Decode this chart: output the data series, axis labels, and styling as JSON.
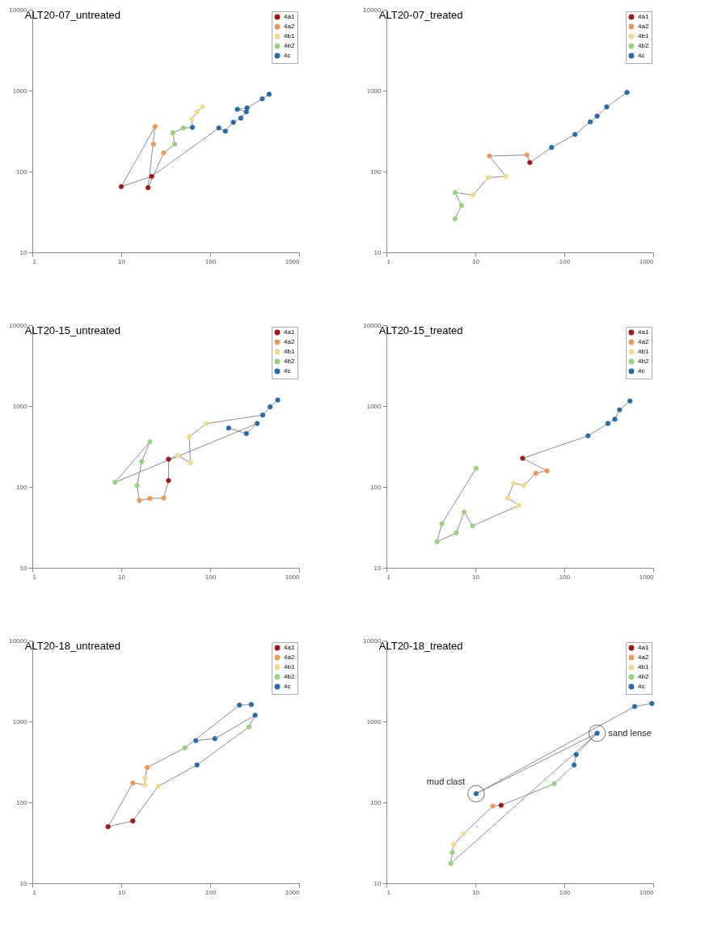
{
  "chart_data": [
    {
      "type": "scatter",
      "title": "ALT20-07_untreated",
      "log": "xy",
      "xlim": [
        1,
        1000
      ],
      "ylim": [
        10,
        10000
      ],
      "xticks": [
        1,
        10,
        100,
        1000
      ],
      "yticks": [
        10,
        100,
        1000,
        10000
      ],
      "grid": false,
      "legend": "top right",
      "marker": "circle",
      "series": [
        {
          "type": "line",
          "marker": "none",
          "color": "#8c8c8c",
          "x": [
            460,
            385,
            260,
            202,
            255,
            221,
            182,
            148,
            125,
            22,
            10,
            24,
            20,
            30,
            40,
            38,
            50,
            63,
            62,
            71,
            82
          ],
          "values": [
            900,
            790,
            610,
            587,
            547,
            458,
            406,
            315,
            345,
            87,
            65,
            358,
            63,
            170,
            218,
            300,
            345,
            351,
            443,
            547,
            630
          ]
        },
        {
          "name": "4a1",
          "color": "#9e1b1b",
          "x": [
            22,
            20,
            10
          ],
          "values": [
            87,
            63,
            65
          ]
        },
        {
          "name": "4a2",
          "color": "#e89a5a",
          "x": [
            30,
            24,
            23
          ],
          "values": [
            170,
            358,
            218
          ]
        },
        {
          "name": "4b1",
          "color": "#f0dc8c",
          "x": [
            82,
            71,
            62
          ],
          "values": [
            630,
            547,
            443
          ]
        },
        {
          "name": "4b2",
          "color": "#9ad17f",
          "x": [
            50,
            38,
            40
          ],
          "values": [
            345,
            300,
            218
          ]
        },
        {
          "name": "4c",
          "color": "#2a6aa5",
          "x": [
            460,
            385,
            260,
            255,
            202,
            221,
            182,
            148,
            125,
            63
          ],
          "values": [
            900,
            790,
            610,
            547,
            587,
            458,
            406,
            315,
            345,
            351
          ]
        }
      ]
    },
    {
      "type": "scatter",
      "title": "ALT20-07_treated",
      "log": "xy",
      "xlim": [
        1,
        1000
      ],
      "ylim": [
        10,
        10000
      ],
      "xticks": [
        1,
        10,
        100,
        1000
      ],
      "yticks": [
        10,
        100,
        1000,
        10000
      ],
      "grid": false,
      "legend": "top right",
      "marker": "circle",
      "series": [
        {
          "type": "line",
          "marker": "none",
          "color": "#8c8c8c",
          "x": [
            507,
            300,
            234,
            196,
            132,
            72,
            41,
            38,
            14.4,
            22,
            14,
            9.4,
            5.9,
            7,
            5.9
          ],
          "values": [
            950,
            628,
            483,
            410,
            287,
            198,
            129,
            160,
            155,
            87,
            84,
            51,
            55,
            38,
            26
          ]
        },
        {
          "name": "4a1",
          "color": "#9e1b1b",
          "x": [
            41
          ],
          "values": [
            129
          ]
        },
        {
          "name": "4a2",
          "color": "#e89a5a",
          "x": [
            38,
            14.4
          ],
          "values": [
            160,
            155
          ]
        },
        {
          "name": "4b1",
          "color": "#f0dc8c",
          "x": [
            22,
            14,
            9.4
          ],
          "values": [
            87,
            84,
            51
          ]
        },
        {
          "name": "4b2",
          "color": "#9ad17f",
          "x": [
            5.9,
            7,
            5.9
          ],
          "values": [
            55,
            38,
            26
          ]
        },
        {
          "name": "4c",
          "color": "#2a6aa5",
          "x": [
            507,
            300,
            234,
            196,
            132,
            72
          ],
          "values": [
            950,
            628,
            483,
            410,
            287,
            198
          ]
        }
      ]
    },
    {
      "type": "scatter",
      "title": "ALT20-15_untreated",
      "log": "xy",
      "xlim": [
        1,
        1000
      ],
      "ylim": [
        10,
        10000
      ],
      "xticks": [
        1,
        10,
        100,
        1000
      ],
      "yticks": [
        10,
        100,
        1000,
        10000
      ],
      "grid": false,
      "legend": "top right",
      "marker": "circle",
      "series": [
        {
          "type": "line",
          "marker": "none",
          "color": "#8c8c8c",
          "x": [
            575,
            472,
            390,
            91,
            58,
            60,
            43,
            34,
            34,
            30,
            21,
            16,
            15,
            17,
            21,
            8.5,
            338,
            255,
            161
          ],
          "values": [
            1186,
            977,
            774,
            608,
            417,
            198,
            245,
            220,
            120,
            73,
            72,
            68,
            104,
            205,
            362,
            114,
            608,
            457,
            535
          ]
        },
        {
          "name": "4a1",
          "color": "#9e1b1b",
          "x": [
            34,
            34
          ],
          "values": [
            220,
            120
          ]
        },
        {
          "name": "4a2",
          "color": "#e89a5a",
          "x": [
            30,
            21,
            16
          ],
          "values": [
            73,
            72,
            68
          ]
        },
        {
          "name": "4b1",
          "color": "#f0dc8c",
          "x": [
            91,
            58,
            60,
            43
          ],
          "values": [
            608,
            417,
            198,
            245
          ]
        },
        {
          "name": "4b2",
          "color": "#9ad17f",
          "x": [
            15,
            17,
            21,
            8.5
          ],
          "values": [
            104,
            205,
            362,
            114
          ]
        },
        {
          "name": "4c",
          "color": "#2a6aa5",
          "x": [
            575,
            472,
            390,
            338,
            255,
            161
          ],
          "values": [
            1186,
            977,
            774,
            608,
            457,
            535
          ]
        }
      ]
    },
    {
      "type": "scatter",
      "title": "ALT20-15_treated",
      "log": "xy",
      "xlim": [
        1,
        1000
      ],
      "ylim": [
        10,
        10000
      ],
      "xticks": [
        1,
        10,
        100,
        1000
      ],
      "yticks": [
        10,
        100,
        1000,
        10000
      ],
      "grid": false,
      "legend": "top right",
      "marker": "circle",
      "series": [
        {
          "type": "line",
          "marker": "none",
          "color": "#8c8c8c",
          "x": [
            548,
            418,
            370,
            310,
            185,
            34,
            64,
            48,
            35,
            27,
            23,
            31,
            9.3,
            7.5,
            6.1,
            3.7,
            4.2,
            10.2
          ],
          "values": [
            1153,
            899,
            687,
            609,
            428,
            226,
            158,
            148,
            104,
            111,
            73,
            59,
            33,
            49,
            27,
            21,
            35,
            170
          ]
        },
        {
          "name": "4a1",
          "color": "#9e1b1b",
          "x": [
            34
          ],
          "values": [
            226
          ]
        },
        {
          "name": "4a2",
          "color": "#e89a5a",
          "x": [
            64,
            48
          ],
          "values": [
            158,
            148
          ]
        },
        {
          "name": "4b1",
          "color": "#f0dc8c",
          "x": [
            35,
            27,
            23,
            31
          ],
          "values": [
            104,
            111,
            73,
            59
          ]
        },
        {
          "name": "4b2",
          "color": "#9ad17f",
          "x": [
            9.3,
            7.5,
            6.1,
            3.7,
            4.2,
            10.2
          ],
          "values": [
            33,
            49,
            27,
            21,
            35,
            170
          ]
        },
        {
          "name": "4c",
          "color": "#2a6aa5",
          "x": [
            548,
            418,
            370,
            310,
            185
          ],
          "values": [
            1153,
            899,
            687,
            609,
            428
          ]
        }
      ]
    },
    {
      "type": "scatter",
      "title": "ALT20-18_untreated",
      "log": "xy",
      "xlim": [
        1,
        1000
      ],
      "ylim": [
        10,
        10000
      ],
      "xticks": [
        1,
        10,
        100,
        1000
      ],
      "yticks": [
        10,
        100,
        1000,
        10000
      ],
      "grid": false,
      "legend": "top right",
      "marker": "circle",
      "series": [
        {
          "type": "line",
          "marker": "none",
          "color": "#8c8c8c",
          "x": [
            290,
            213,
            52,
            19.6,
            18.5,
            18.5,
            13.5,
            7.1,
            13.5,
            26,
            71,
            273,
            320,
            113,
            69
          ],
          "values": [
            1618,
            1597,
            472,
            270,
            200,
            165,
            174,
            50,
            59,
            158,
            290,
            855,
            1194,
            614,
            580
          ]
        },
        {
          "name": "4a1",
          "color": "#9e1b1b",
          "x": [
            13.5,
            7.1
          ],
          "values": [
            59,
            50
          ]
        },
        {
          "name": "4a2",
          "color": "#e89a5a",
          "x": [
            19.6,
            13.5
          ],
          "values": [
            270,
            174
          ]
        },
        {
          "name": "4b1",
          "color": "#f0dc8c",
          "x": [
            18.5,
            18.5,
            26
          ],
          "values": [
            200,
            165,
            158
          ]
        },
        {
          "name": "4b2",
          "color": "#9ad17f",
          "x": [
            52,
            273
          ],
          "values": [
            472,
            855
          ]
        },
        {
          "name": "4c",
          "color": "#2a6aa5",
          "x": [
            290,
            213,
            320,
            113,
            69,
            71
          ],
          "values": [
            1618,
            1597,
            1194,
            614,
            580,
            290
          ]
        }
      ]
    },
    {
      "type": "scatter",
      "title": "ALT20-18_treated",
      "log": "xy",
      "xlim": [
        1,
        1000
      ],
      "ylim": [
        10,
        10000
      ],
      "xticks": [
        1,
        10,
        100,
        1000
      ],
      "yticks": [
        10,
        100,
        1000,
        10000
      ],
      "grid": false,
      "legend": "top right",
      "marker": "circle",
      "annotations": [
        {
          "text": "mud clast",
          "x": 10.2,
          "y": 128
        },
        {
          "text": "sand lense",
          "x": 234,
          "y": 716
        }
      ],
      "series": [
        {
          "type": "line",
          "marker": "none",
          "color": "#8c8c8c",
          "x": [
            964,
            618,
            10.2,
            234,
            136,
            129,
            77,
            19.5,
            15.7,
            7.4,
            5.7,
            5.5,
            5.3,
            234
          ],
          "values": [
            1667,
            1531,
            128,
            716,
            390,
            290,
            170,
            92,
            90,
            41,
            30,
            24,
            17.6,
            716
          ]
        },
        {
          "name": "4a1",
          "color": "#9e1b1b",
          "x": [
            19.5
          ],
          "values": [
            92
          ]
        },
        {
          "name": "4a2",
          "color": "#e89a5a",
          "x": [
            15.7
          ],
          "values": [
            90
          ]
        },
        {
          "name": "4b1",
          "color": "#f0dc8c",
          "x": [
            7.4,
            5.7
          ],
          "values": [
            41,
            30
          ]
        },
        {
          "name": "4b2",
          "color": "#9ad17f",
          "x": [
            5.5,
            5.3,
            77
          ],
          "values": [
            24,
            17.6,
            170
          ]
        },
        {
          "name": "4c",
          "color": "#2a6aa5",
          "x": [
            964,
            618,
            234,
            136,
            129,
            10.2
          ],
          "values": [
            1667,
            1531,
            716,
            390,
            290,
            128
          ]
        }
      ]
    }
  ]
}
